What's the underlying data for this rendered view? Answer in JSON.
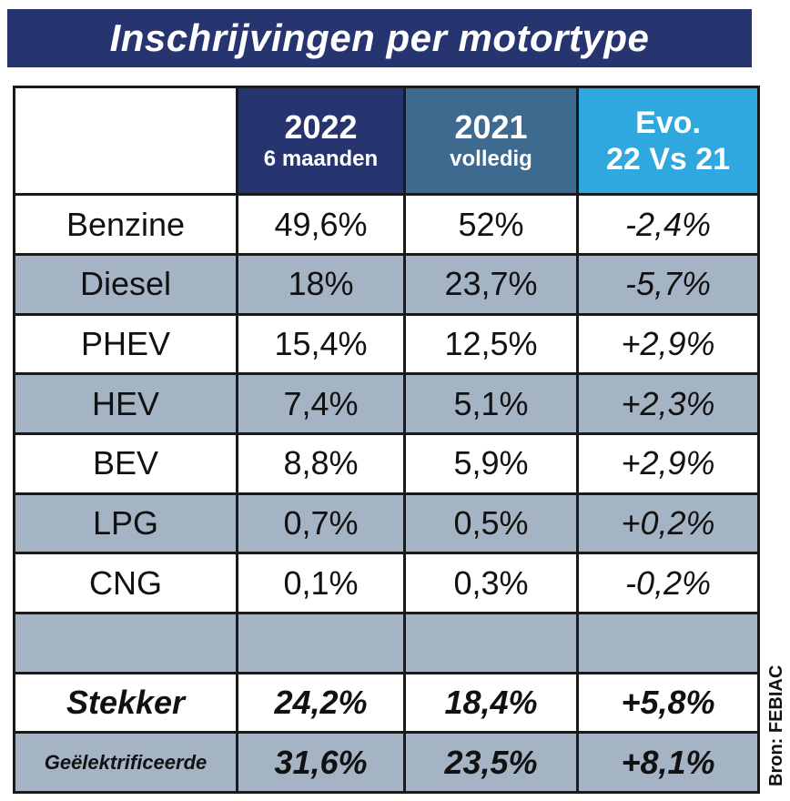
{
  "title": "Inschrijvingen per motortype",
  "source": "Bron: FEBIAC",
  "chart_data": {
    "type": "table",
    "title": "Inschrijvingen per motortype",
    "columns": [
      {
        "year": "2022",
        "sub": "6 maanden"
      },
      {
        "year": "2021",
        "sub": "volledig"
      },
      {
        "line1": "Evo.",
        "line2": "22 Vs 21"
      }
    ],
    "rows": [
      {
        "label": "Benzine",
        "v2022": "49,6%",
        "v2021": "52%",
        "evo": "-2,4%"
      },
      {
        "label": "Diesel",
        "v2022": "18%",
        "v2021": "23,7%",
        "evo": "-5,7%"
      },
      {
        "label": "PHEV",
        "v2022": "15,4%",
        "v2021": "12,5%",
        "evo": "+2,9%"
      },
      {
        "label": "HEV",
        "v2022": "7,4%",
        "v2021": "5,1%",
        "evo": "+2,3%"
      },
      {
        "label": "BEV",
        "v2022": "8,8%",
        "v2021": "5,9%",
        "evo": "+2,9%"
      },
      {
        "label": "LPG",
        "v2022": "0,7%",
        "v2021": "0,5%",
        "evo": "+0,2%"
      },
      {
        "label": "CNG",
        "v2022": "0,1%",
        "v2021": "0,3%",
        "evo": "-0,2%"
      }
    ],
    "totals": [
      {
        "label": "Stekker",
        "v2022": "24,2%",
        "v2021": "18,4%",
        "evo": "+5,8%"
      },
      {
        "label": "Geëlektrificeerde",
        "v2022": "31,6%",
        "v2021": "23,5%",
        "evo": "+8,1%"
      }
    ],
    "colors": {
      "header_2022": "#263570",
      "header_2021": "#3f6a90",
      "header_evo": "#2ea8df",
      "row_shade": "#a5b4c5"
    }
  }
}
